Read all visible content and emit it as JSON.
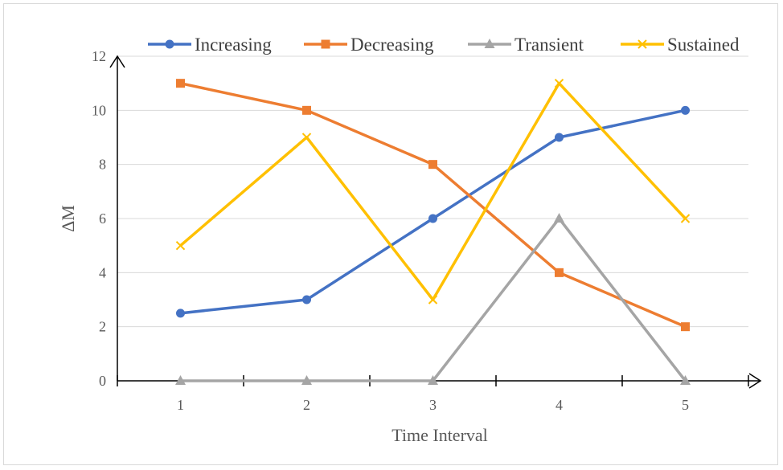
{
  "chart_data": {
    "type": "line",
    "xlabel": "Time Interval",
    "ylabel": "ΔM",
    "categories": [
      "1",
      "2",
      "3",
      "4",
      "5"
    ],
    "ylim": [
      0,
      12
    ],
    "yticks": [
      "0",
      "2",
      "4",
      "6",
      "8",
      "10",
      "12"
    ],
    "grid": true,
    "legend_position": "top",
    "series": [
      {
        "name": "Increasing",
        "color": "#4472c4",
        "marker": "circle",
        "values": [
          2.5,
          3,
          6,
          9,
          10
        ]
      },
      {
        "name": "Decreasing",
        "color": "#ed7d31",
        "marker": "square",
        "values": [
          11,
          10,
          8,
          4,
          2
        ]
      },
      {
        "name": "Transient",
        "color": "#a5a5a5",
        "marker": "triangle",
        "values": [
          0,
          0,
          0,
          6,
          0
        ]
      },
      {
        "name": "Sustained",
        "color": "#ffc000",
        "marker": "x",
        "values": [
          5,
          9,
          3,
          11,
          6
        ]
      }
    ]
  }
}
